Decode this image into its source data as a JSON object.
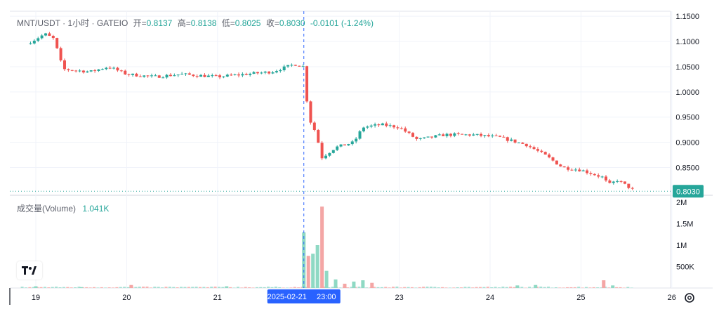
{
  "header": {
    "symbol": "MNT/USDT",
    "interval": "1小时",
    "exchange": "GATEIO",
    "open_label": "开=",
    "open": "0.8137",
    "high_label": "高=",
    "high": "0.8138",
    "low_label": "低=",
    "low": "0.8025",
    "close_label": "收=",
    "close": "0.8030",
    "change": "-0.0101 (-1.24%)"
  },
  "volume_panel": {
    "label": "成交量(Volume)",
    "value": "1.041K"
  },
  "crosshair": {
    "date_label": "2025-02-21",
    "time_label": "23:00"
  },
  "last_price_label": "0.8030",
  "colors": {
    "up": "#26a69a",
    "down": "#ef5350",
    "crosshair": "#2962ff",
    "last_price_line": "#26a69a"
  },
  "icons": {
    "logo": "tradingview-logo-icon",
    "settings": "gear-icon"
  },
  "chart_data": [
    {
      "type": "candlestick",
      "title": "MNT/USDT · 1小时 · GATEIO",
      "x_ticks": [
        "19",
        "20",
        "21",
        "23",
        "24",
        "25",
        "26"
      ],
      "y_ticks": [
        "1.1500",
        "1.1000",
        "1.0500",
        "1.0000",
        "0.9500",
        "0.9000",
        "0.8500"
      ],
      "ylim": [
        0.795,
        1.16
      ],
      "last_price": 0.803,
      "grid": true,
      "price_path": [
        [
          18.9,
          1.095
        ],
        [
          19.1,
          1.115
        ],
        [
          19.2,
          1.105
        ],
        [
          19.3,
          1.045
        ],
        [
          19.6,
          1.04
        ],
        [
          19.8,
          1.05
        ],
        [
          20.0,
          1.035
        ],
        [
          20.3,
          1.03
        ],
        [
          20.6,
          1.035
        ],
        [
          21.0,
          1.03
        ],
        [
          21.3,
          1.035
        ],
        [
          21.6,
          1.04
        ],
        [
          21.85,
          1.055
        ],
        [
          21.95,
          1.05
        ],
        [
          22.0,
          0.95
        ],
        [
          22.08,
          0.92
        ],
        [
          22.15,
          0.87
        ],
        [
          22.3,
          0.89
        ],
        [
          22.5,
          0.9
        ],
        [
          22.6,
          0.93
        ],
        [
          22.8,
          0.935
        ],
        [
          23.0,
          0.93
        ],
        [
          23.2,
          0.905
        ],
        [
          23.5,
          0.915
        ],
        [
          23.8,
          0.915
        ],
        [
          24.1,
          0.91
        ],
        [
          24.4,
          0.895
        ],
        [
          24.6,
          0.875
        ],
        [
          24.8,
          0.85
        ],
        [
          25.0,
          0.845
        ],
        [
          25.25,
          0.83
        ],
        [
          25.3,
          0.815
        ],
        [
          25.4,
          0.825
        ],
        [
          25.6,
          0.803
        ]
      ]
    },
    {
      "type": "bar",
      "title": "成交量(Volume)",
      "y_ticks": [
        "2M",
        "1.5M",
        "1M",
        "500K"
      ],
      "ylim": [
        0,
        2000000
      ],
      "x": [
        19.0,
        19.5,
        20.05,
        21.1,
        21.95,
        22.0,
        22.05,
        22.1,
        22.15,
        22.2,
        22.3,
        22.4,
        22.5,
        22.6,
        22.7,
        24.3,
        24.5,
        25.25,
        25.35
      ],
      "values": [
        40000,
        20000,
        70000,
        40000,
        1300000,
        750000,
        800000,
        1000000,
        1900000,
        400000,
        200000,
        100000,
        150000,
        180000,
        120000,
        60000,
        70000,
        180000,
        60000
      ]
    }
  ]
}
